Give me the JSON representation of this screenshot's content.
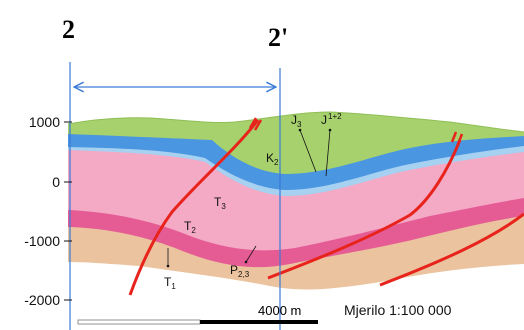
{
  "section": {
    "left_label": "2",
    "right_label": "2'"
  },
  "y_axis": {
    "ticks": [
      "1000",
      "0",
      "-1000",
      "-2000"
    ]
  },
  "layers": [
    {
      "id": "K2",
      "base": "K",
      "sub": "2"
    },
    {
      "id": "J3",
      "base": "J",
      "sub": "3"
    },
    {
      "id": "J1+2",
      "base": "J",
      "sub": "1+2"
    },
    {
      "id": "T3",
      "base": "T",
      "sub": "3"
    },
    {
      "id": "T2",
      "base": "T",
      "sub": "2"
    },
    {
      "id": "T1",
      "base": "T",
      "sub": "1"
    },
    {
      "id": "P23",
      "base": "P",
      "sub": "2,3"
    }
  ],
  "scale": {
    "length_label": "4000 m",
    "ratio_label": "Mjerilo 1:100 000"
  },
  "colors": {
    "cretaceous": "#a6d16c",
    "jurassic_blue": "#4a96e0",
    "jurassic_light": "#a7d1f1",
    "triassic_pink": "#f4a9c5",
    "triassic_dark": "#e55c95",
    "permian_tan": "#ebc39e",
    "fault": "#e8231c",
    "section_line": "#3a7ad6"
  }
}
